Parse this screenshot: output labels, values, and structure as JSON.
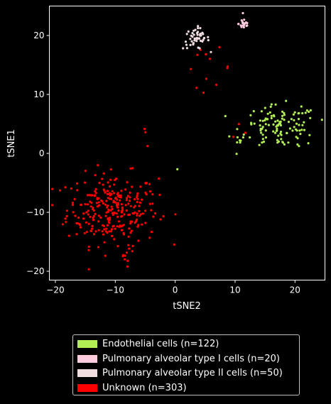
{
  "chart_data": {
    "type": "scatter",
    "xlabel": "tSNE2",
    "ylabel": "tSNE1",
    "xlim": [
      -21,
      25
    ],
    "ylim": [
      -21.5,
      25
    ],
    "x_ticks": [
      -20,
      -10,
      0,
      10,
      20
    ],
    "y_ticks": [
      -20,
      -10,
      0,
      10,
      20
    ],
    "x_tick_labels": [
      "−20",
      "−10",
      "0",
      "10",
      "20"
    ],
    "y_tick_labels": [
      "−20",
      "−10",
      "0",
      "10",
      "20"
    ],
    "grid": false,
    "background": "#000000",
    "legend_position": "below",
    "series": [
      {
        "name": "Endothelial cells (n=122)",
        "color": "#b2ee53",
        "count": 122,
        "clusters": [
          {
            "cx": 17.5,
            "cy": 4.5,
            "sx": 3.2,
            "sy": 1.8,
            "n": 116
          },
          {
            "cx": 11.0,
            "cy": 2.0,
            "sx": 0.6,
            "sy": 0.3,
            "n": 5
          },
          {
            "cx": 0.4,
            "cy": -2.7,
            "sx": 0.05,
            "sy": 0.05,
            "n": 1
          }
        ]
      },
      {
        "name": "Pulmonary alveolar type I cells (n=20)",
        "color": "#ffccdf",
        "count": 20,
        "clusters": [
          {
            "cx": 11.5,
            "cy": 22.0,
            "sx": 0.45,
            "sy": 0.55,
            "n": 20
          }
        ]
      },
      {
        "name": "Pulmonary alveolar type II cells (n=50)",
        "color": "#f0dde0",
        "count": 50,
        "clusters": [
          {
            "cx": 3.5,
            "cy": 19.5,
            "sx": 1.1,
            "sy": 0.9,
            "n": 50
          }
        ]
      },
      {
        "name": "Unknown (n=303)",
        "color": "#ff0000",
        "count": 303,
        "clusters": [
          {
            "cx": -10.5,
            "cy": -9.5,
            "sx": 3.8,
            "sy": 3.0,
            "n": 275
          },
          {
            "cx": -8.0,
            "cy": -17.0,
            "sx": 0.9,
            "sy": 1.0,
            "n": 10
          },
          {
            "cx": 5.5,
            "cy": 14.5,
            "sx": 2.0,
            "sy": 1.6,
            "n": 12
          },
          {
            "cx": -5.0,
            "cy": 3.0,
            "sx": 0.4,
            "sy": 1.2,
            "n": 3
          },
          {
            "cx": 11.0,
            "cy": 3.5,
            "sx": 0.8,
            "sy": 2.5,
            "n": 3
          }
        ]
      }
    ]
  }
}
